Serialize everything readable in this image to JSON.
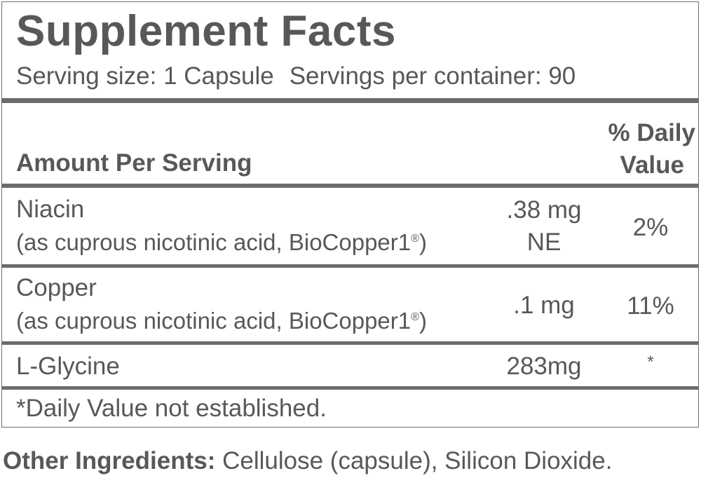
{
  "title": "Supplement Facts",
  "serving_size": "Serving size: 1 Capsule",
  "servings_per_container": "Servings per container: 90",
  "header": {
    "amount_per_serving": "Amount Per Serving",
    "daily_value_line1": "% Daily",
    "daily_value_line2": "Value"
  },
  "rows": [
    {
      "name": "Niacin",
      "source": "(as cuprous nicotinic acid, BioCopper1",
      "reg": "®",
      "source_end": ")",
      "amount_line1": ".38 mg",
      "amount_line2": "NE",
      "dv": "2%"
    },
    {
      "name": "Copper",
      "source": "(as cuprous nicotinic acid, BioCopper1",
      "reg": "®",
      "source_end": ")",
      "amount_line1": ".1 mg",
      "dv": "11%"
    },
    {
      "name": "L-Glycine",
      "amount_line1": "283mg",
      "dv": "*"
    }
  ],
  "footnote": "*Daily Value not established.",
  "other_ingredients": {
    "label": "Other Ingredients:",
    "value": " Cellulose (capsule), Silicon Dioxide."
  }
}
